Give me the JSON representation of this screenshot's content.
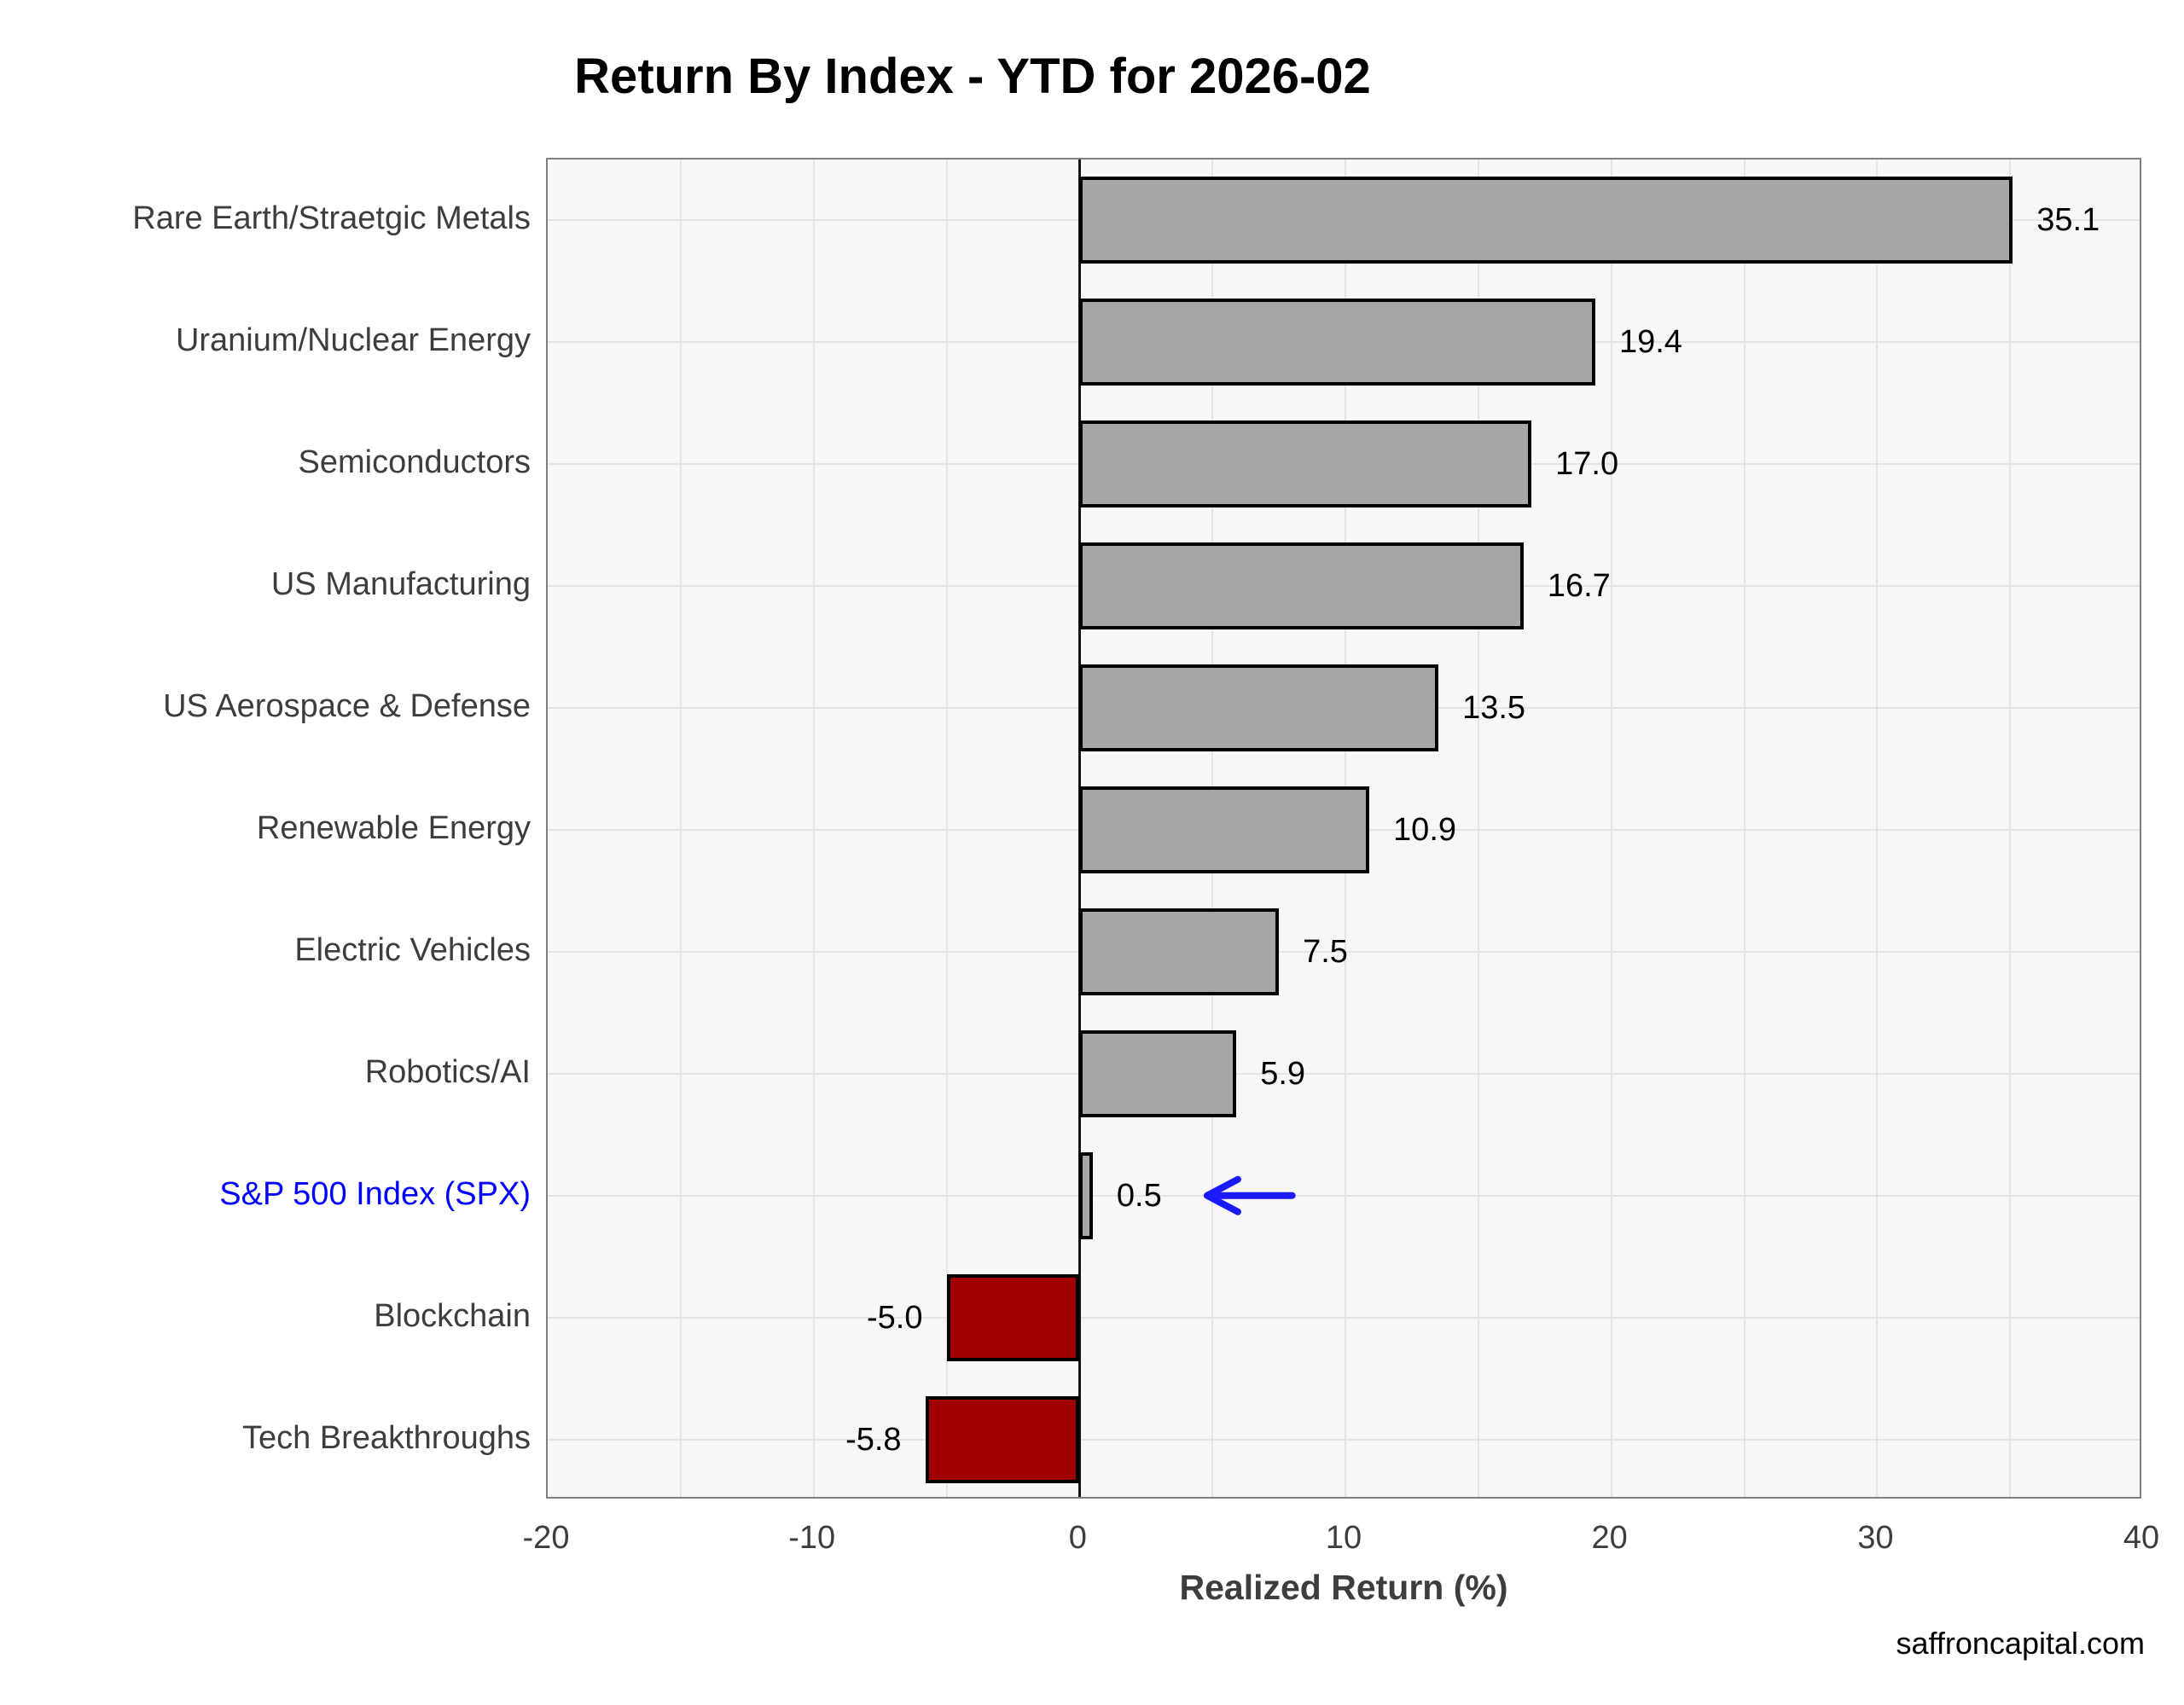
{
  "title": "Return By Index - YTD for 2026-02",
  "footer": "saffroncapital.com",
  "colors": {
    "bar_positive": "#a6a6a6",
    "bar_negative": "#a00000",
    "bar_border": "#000000",
    "plot_background": "#f7f7f7",
    "grid_line": "#e4e4e4",
    "zero_line": "#141414",
    "axis_border": "#7f7f7f",
    "highlight_text": "#0000ff",
    "arrow": "#1a1aff",
    "label_text": "#3d3d3d",
    "value_text": "#000000"
  },
  "chart_data": {
    "type": "bar",
    "orientation": "horizontal",
    "title": "Return By Index - YTD for 2026-02",
    "xlabel": "Realized Return (%)",
    "ylabel": "",
    "xlim": [
      -20,
      40
    ],
    "xticks": [
      -20,
      -10,
      0,
      10,
      20,
      30,
      40
    ],
    "grid_step": 5,
    "grid": true,
    "legend": false,
    "categories": [
      "Rare Earth/Straetgic Metals",
      "Uranium/Nuclear Energy",
      "Semiconductors",
      "US Manufacturing",
      "US Aerospace & Defense",
      "Renewable Energy",
      "Electric Vehicles",
      "Robotics/AI",
      "S&P 500 Index (SPX)",
      "Blockchain",
      "Tech Breakthroughs"
    ],
    "values": [
      35.1,
      19.4,
      17.0,
      16.7,
      13.5,
      10.9,
      7.5,
      5.9,
      0.5,
      -5.0,
      -5.8
    ],
    "value_labels": [
      "35.1",
      "19.4",
      "17.0",
      "16.7",
      "13.5",
      "10.9",
      "7.5",
      "5.9",
      "0.5",
      "-5.0",
      "-5.8"
    ],
    "highlight_index": 8,
    "annotation": {
      "type": "arrow",
      "target_category": "S&P 500 Index (SPX)",
      "direction": "left",
      "tail_value": 8.0,
      "head_value": 4.8
    }
  }
}
